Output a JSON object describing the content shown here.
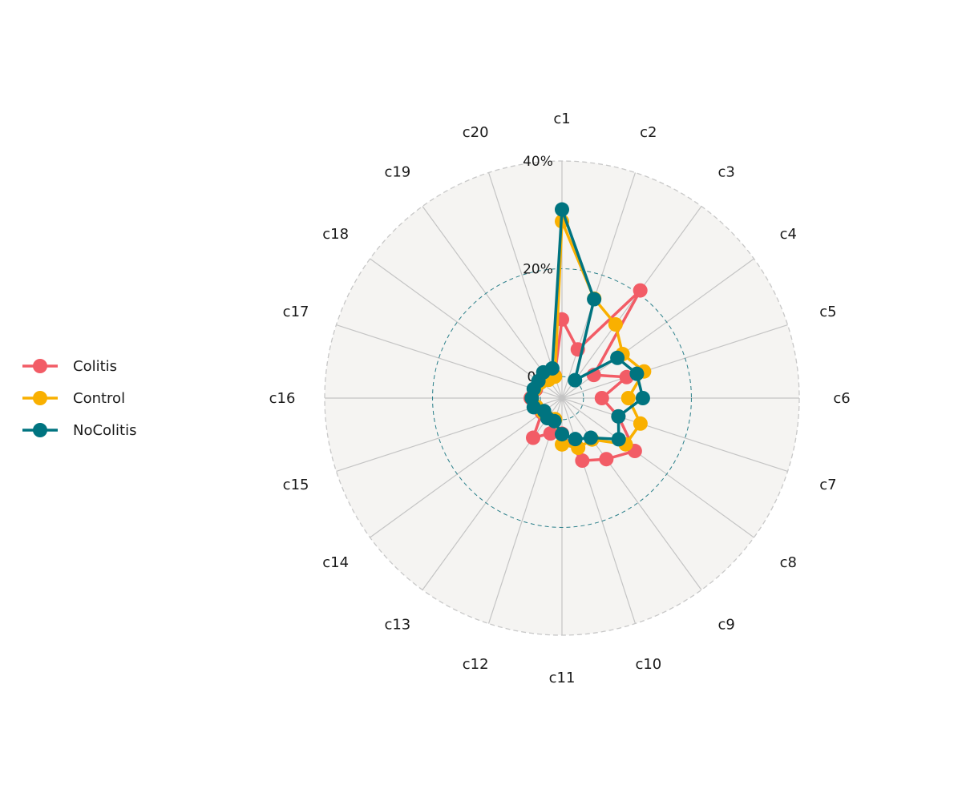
{
  "chart_data": {
    "type": "radar",
    "categories": [
      "c1",
      "c2",
      "c3",
      "c4",
      "c5",
      "c6",
      "c7",
      "c8",
      "c9",
      "c10",
      "c11",
      "c12",
      "c13",
      "c14",
      "c15",
      "c16",
      "c17",
      "c18",
      "c19",
      "c20"
    ],
    "radial_range": [
      -4,
      40
    ],
    "radial_ticks": [
      {
        "value": 0,
        "label": "0%"
      },
      {
        "value": 20,
        "label": "20%"
      },
      {
        "value": 40,
        "label": "40%"
      }
    ],
    "legend_position": "left",
    "series": [
      {
        "name": "Colitis",
        "color": "#f25c66",
        "values": [
          10.6,
          5.5,
          20.7,
          3.3,
          8.6,
          3.4,
          7.0,
          12.7,
          10.0,
          8.2,
          2.6,
          2.9,
          5.1,
          0.6,
          1.4,
          1.8,
          1.1,
          1.1,
          1.6,
          0.4
        ]
      },
      {
        "name": "Control",
        "color": "#f9b000",
        "values": [
          28.8,
          15.4,
          12.9,
          9.9,
          12.0,
          8.3,
          11.3,
          10.6,
          5.5,
          5.7,
          4.6,
          0.1,
          0.5,
          0.4,
          1.0,
          1.6,
          1.3,
          0.9,
          0.2,
          0.2
        ]
      },
      {
        "name": "NoColitis",
        "color": "#007480",
        "values": [
          31.0,
          15.3,
          0.1,
          8.7,
          10.6,
          11.0,
          7.0,
          9.0,
          5.1,
          4.0,
          2.7,
          0.5,
          0.6,
          0.1,
          1.5,
          1.6,
          1.5,
          1.4,
          1.9,
          1.8
        ]
      }
    ]
  }
}
